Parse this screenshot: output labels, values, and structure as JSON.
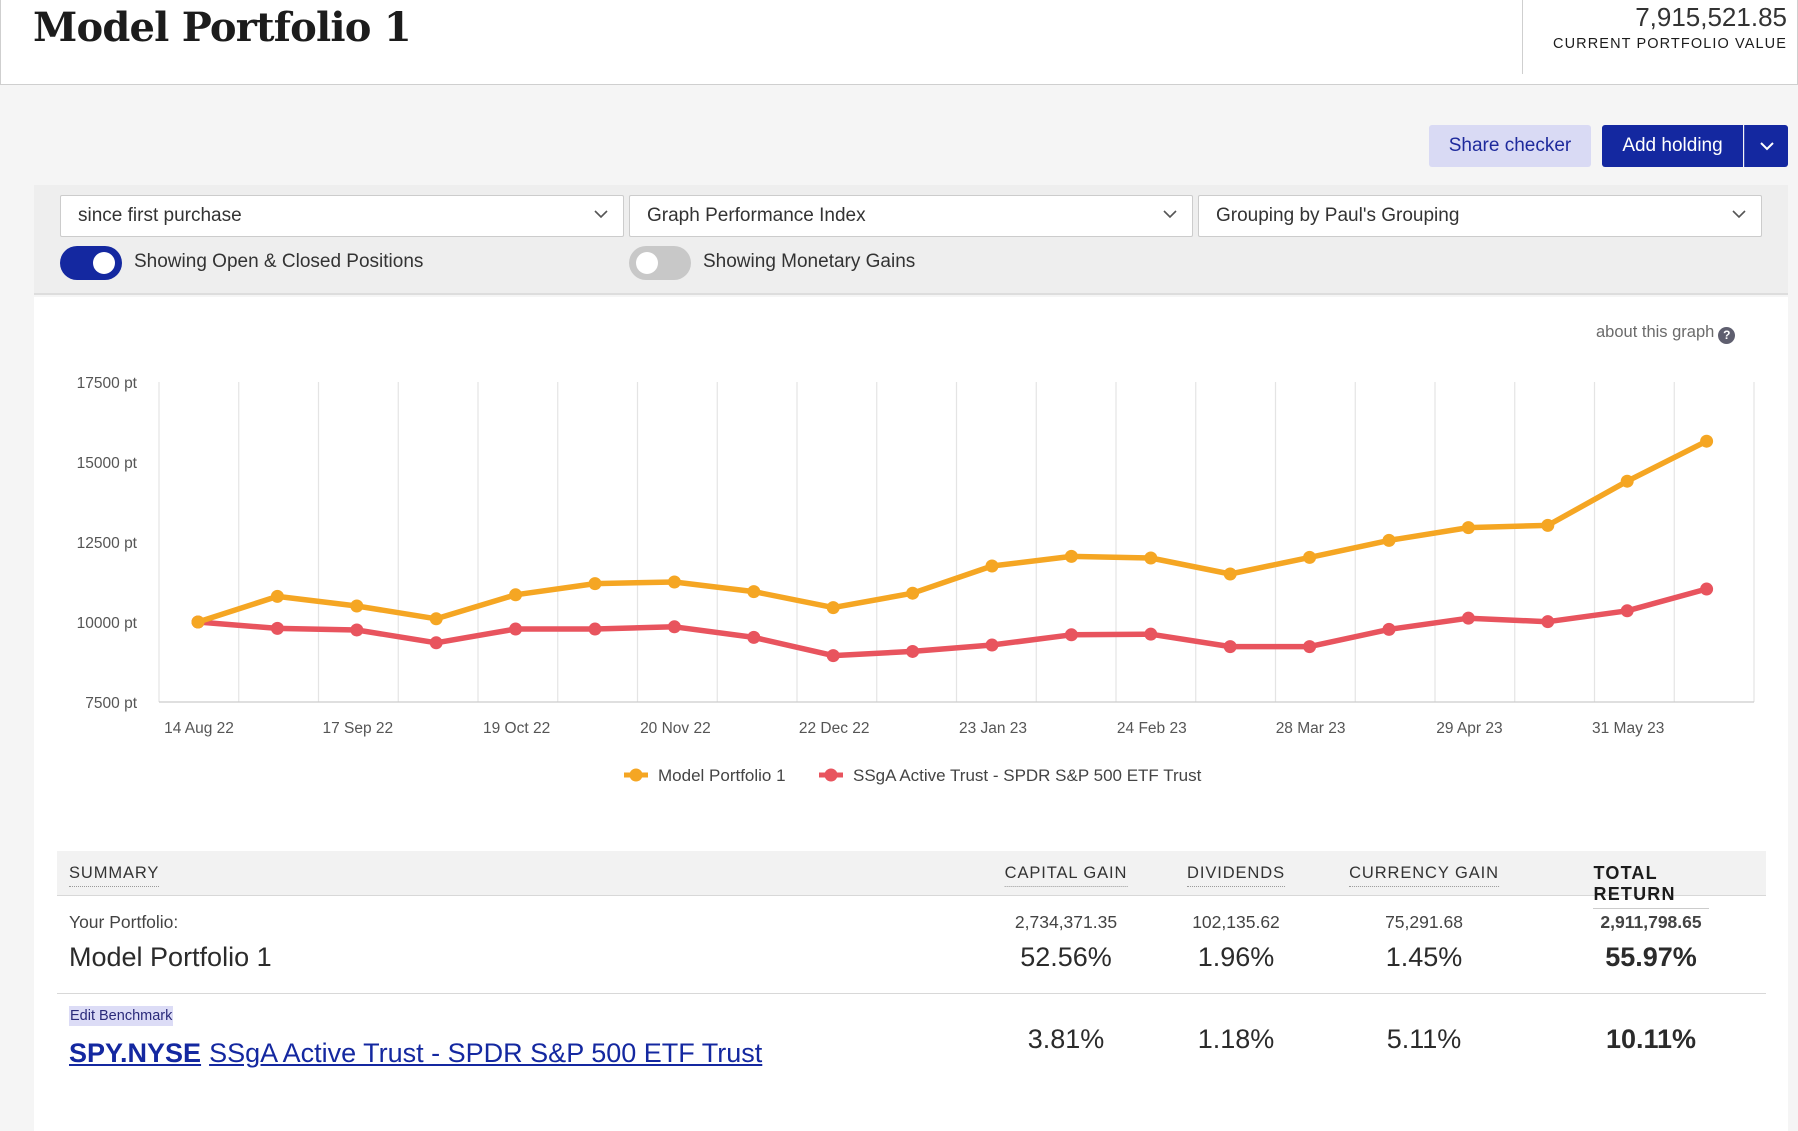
{
  "header": {
    "title": "Model Portfolio 1",
    "portfolio_value": "7,915,521.85",
    "portfolio_value_label": "CURRENT PORTFOLIO VALUE"
  },
  "actions": {
    "share_checker": "Share checker",
    "add_holding": "Add holding"
  },
  "filters": {
    "period": "since first purchase",
    "graph_type": "Graph Performance Index",
    "grouping": "Grouping by Paul's Grouping",
    "positions_toggle": {
      "label": "Showing Open & Closed Positions",
      "on": true
    },
    "gains_toggle": {
      "label": "Showing Monetary Gains",
      "on": false
    }
  },
  "graph": {
    "about_link": "about this graph",
    "about_icon": "question-icon"
  },
  "chart_data": {
    "type": "line",
    "y_unit_suffix": " pt",
    "ylim": [
      7500,
      17500
    ],
    "y_ticks": [
      7500,
      10000,
      12500,
      15000,
      17500
    ],
    "y_tick_labels": [
      "7500 pt",
      "10000 pt",
      "12500 pt",
      "15000 pt",
      "17500 pt"
    ],
    "x_tick_labels": [
      "14 Aug 22",
      "17 Sep 22",
      "19 Oct 22",
      "20 Nov 22",
      "22 Dec 22",
      "23 Jan 23",
      "24 Feb 23",
      "28 Mar 23",
      "29 Apr 23",
      "31 May 23"
    ],
    "grid": "vertical",
    "legend": "bottom-center",
    "series": [
      {
        "name": "Model Portfolio 1",
        "color": "#f5a623",
        "values": [
          10000,
          10800,
          10500,
          10100,
          10850,
          11200,
          11250,
          10950,
          10450,
          10900,
          11750,
          12050,
          12000,
          11500,
          12020,
          12550,
          12950,
          13020,
          14400,
          15650
        ]
      },
      {
        "name": "SSgA Active Trust - SPDR S&P 500 ETF Trust",
        "color": "#e8545e",
        "values": [
          10000,
          9800,
          9750,
          9350,
          9780,
          9780,
          9850,
          9520,
          8950,
          9080,
          9280,
          9600,
          9620,
          9230,
          9230,
          9770,
          10120,
          10010,
          10350,
          11030
        ]
      }
    ]
  },
  "summary": {
    "headers": {
      "summary": "SUMMARY",
      "capital_gain": "CAPITAL GAIN",
      "dividends": "DIVIDENDS",
      "currency_gain": "CURRENCY GAIN",
      "total_return": "TOTAL RETURN"
    },
    "portfolio": {
      "label": "Your Portfolio:",
      "name": "Model Portfolio 1",
      "capital_gain_abs": "2,734,371.35",
      "capital_gain_pct": "52.56%",
      "dividends_abs": "102,135.62",
      "dividends_pct": "1.96%",
      "currency_gain_abs": "75,291.68",
      "currency_gain_pct": "1.45%",
      "total_return_abs": "2,911,798.65",
      "total_return_pct": "55.97%"
    },
    "benchmark": {
      "edit_label": "Edit Benchmark",
      "code": "SPY.NYSE",
      "name": "SSgA Active Trust - SPDR S&P 500 ETF Trust",
      "capital_gain_pct": "3.81%",
      "dividends_pct": "1.18%",
      "currency_gain_pct": "5.11%",
      "total_return_pct": "10.11%"
    }
  }
}
